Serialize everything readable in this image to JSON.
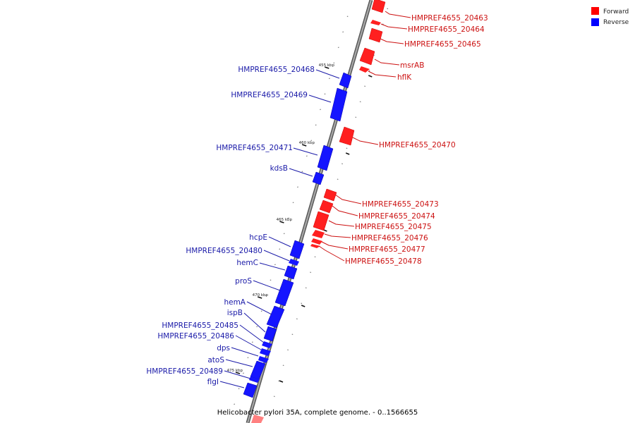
{
  "colors": {
    "forward": "#ff0000",
    "reverse": "#1515ff",
    "forward_label": "#cc1111",
    "reverse_label": "#1a1aa8",
    "axis": "#8a8a8a"
  },
  "legend": {
    "forward": "Forward",
    "reverse": "Reverse"
  },
  "caption": "Helicobacter pylori 35A, complete genome. - 0..1566655",
  "ticks": [
    "455 kbp",
    "460 kbp",
    "465 kbp",
    "470 kbp",
    "475 kbp"
  ],
  "forward_genes": [
    "HMPREF4655_20463",
    "HMPREF4655_20464",
    "HMPREF4655_20465",
    "msrAB",
    "hflK",
    "HMPREF4655_20470",
    "HMPREF4655_20473",
    "HMPREF4655_20474",
    "HMPREF4655_20475",
    "HMPREF4655_20476",
    "HMPREF4655_20477",
    "HMPREF4655_20478"
  ],
  "reverse_genes": [
    "HMPREF4655_20468",
    "HMPREF4655_20469",
    "HMPREF4655_20471",
    "kdsB",
    "hcpE",
    "HMPREF4655_20480",
    "hemC",
    "proS",
    "hemA",
    "ispB",
    "HMPREF4655_20485",
    "HMPREF4655_20486",
    "dps",
    "atoS",
    "HMPREF4655_20489",
    "flgI"
  ]
}
